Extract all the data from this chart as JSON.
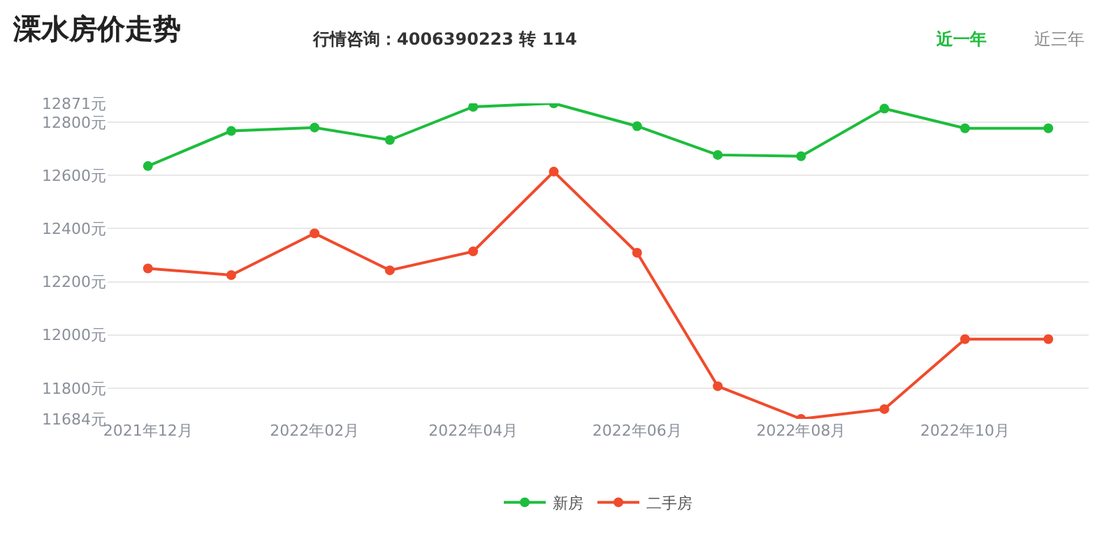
{
  "chart_data": {
    "type": "line",
    "title": "溧水房价走势",
    "subtitle": "行情咨询：4006390223 转 114",
    "annotations": [
      "近一年",
      "近三年"
    ],
    "x": [
      "2021-12",
      "2022-01",
      "2022-02",
      "2022-03",
      "2022-04",
      "2022-05",
      "2022-06",
      "2022-07",
      "2022-08",
      "2022-09",
      "2022-10",
      "2022-11"
    ],
    "series": [
      {
        "name": "新房",
        "color": "#1dbd3c",
        "values": [
          12635,
          12767,
          12780,
          12733,
          12858,
          12871,
          12785,
          12677,
          12672,
          12851,
          12777,
          12777
        ]
      },
      {
        "name": "二手房",
        "color": "#f04b2c",
        "values": [
          12250,
          12225,
          12382,
          12243,
          12314,
          12614,
          12309,
          11807,
          11684,
          11721,
          11984,
          11984
        ]
      }
    ],
    "xlim": [
      "2021-11-16",
      "2022-11-16"
    ],
    "xticks": [
      {
        "value": "2021-12",
        "label": "2021年12月"
      },
      {
        "value": "2022-02",
        "label": "2022年02月"
      },
      {
        "value": "2022-04",
        "label": "2022年04月"
      },
      {
        "value": "2022-06",
        "label": "2022年06月"
      },
      {
        "value": "2022-08",
        "label": "2022年08月"
      },
      {
        "value": "2022-10",
        "label": "2022年10月"
      }
    ],
    "ylim": [
      11684,
      12871
    ],
    "yticks": [
      {
        "value": 11684,
        "label": "11684元"
      },
      {
        "value": 11800,
        "label": "11800元"
      },
      {
        "value": 12000,
        "label": "12000元"
      },
      {
        "value": 12200,
        "label": "12200元"
      },
      {
        "value": 12400,
        "label": "12400元"
      },
      {
        "value": 12600,
        "label": "12600元"
      },
      {
        "value": 12800,
        "label": "12800元"
      },
      {
        "value": 12871,
        "label": "12871元"
      }
    ],
    "grid": "y",
    "legend": "bottom",
    "marker": "circle",
    "line_style": "solid"
  }
}
